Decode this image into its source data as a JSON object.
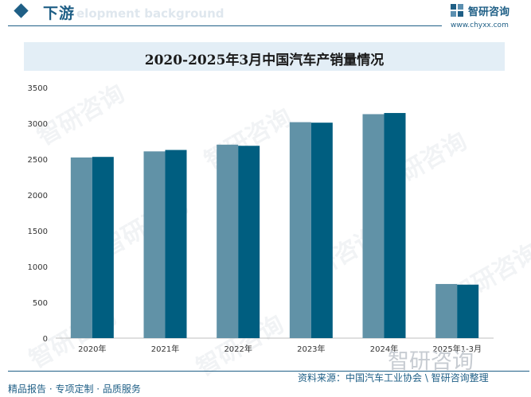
{
  "header": {
    "section_title": "下游",
    "section_subtitle": "elopment background",
    "brand_name": "智研咨询",
    "brand_url": "www.chyxx.com"
  },
  "watermark_text": "智研咨询",
  "colors": {
    "series1": "#6192a7",
    "series2": "#005e80",
    "accent": "#1f5f86"
  },
  "chart_data": {
    "type": "bar",
    "title": "2020-2025年3月中国汽车产销量情况",
    "categories": [
      "2020年",
      "2021年",
      "2022年",
      "2023年",
      "2024年",
      "2025年1-3月"
    ],
    "series": [
      {
        "values": [
          2523,
          2608,
          2702,
          3016,
          3128,
          756
        ]
      },
      {
        "values": [
          2531,
          2628,
          2686,
          3009,
          3144,
          747
        ]
      }
    ],
    "ylim": [
      0,
      3500
    ],
    "yticks": [
      0,
      500,
      1000,
      1500,
      2000,
      2500,
      3000,
      3500
    ],
    "xlabel": "",
    "ylabel": "",
    "grid": false
  },
  "footer": {
    "left_text": "精品报告 · 专项定制 · 品质服务",
    "source_text": "资料来源：中国汽车工业协会 \\ 智研咨询整理"
  }
}
